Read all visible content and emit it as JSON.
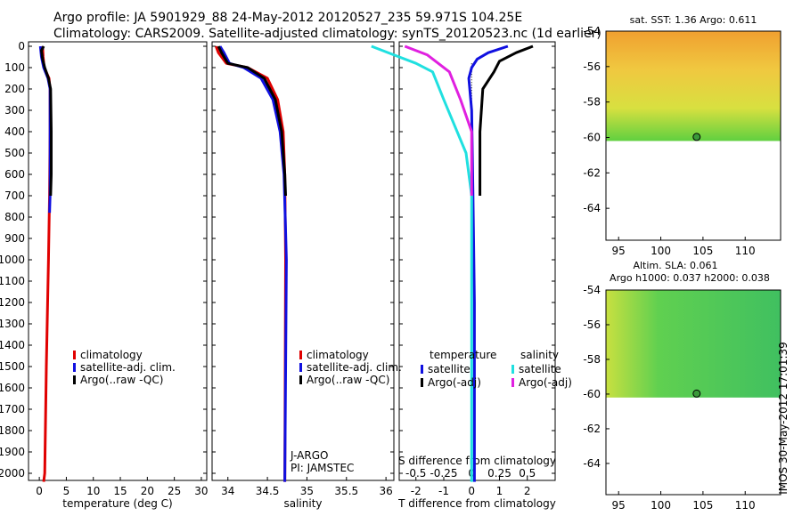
{
  "header": {
    "line1": "Argo profile: JA 5901929_88 24-May-2012 20120527_235 59.971S 104.25E",
    "line2": "Climatology: CARS2009. Satellite-adjusted climatology: synTS_20120523.nc (1d earlier)"
  },
  "colors": {
    "climatology": "#e00000",
    "satellite": "#1010e0",
    "argo": "#000000",
    "cyan": "#20e0e0",
    "magenta": "#e020e0"
  },
  "chart_data": [
    {
      "type": "line",
      "id": "temperature",
      "xlabel": "temperature (deg C)",
      "ylabel": "",
      "xlim": [
        -2,
        31
      ],
      "ylim": [
        2060,
        0
      ],
      "xticks": [
        "0",
        "5",
        "10",
        "15",
        "20",
        "25",
        "30"
      ],
      "xtick_values": [
        0,
        5,
        10,
        15,
        20,
        25,
        30
      ],
      "yticks": [
        0,
        100,
        200,
        300,
        400,
        500,
        600,
        700,
        800,
        900,
        1000,
        1100,
        1200,
        1300,
        1400,
        1500,
        1600,
        1700,
        1800,
        1900,
        2000
      ],
      "ytick_labels": [
        "0",
        "100",
        "200",
        "300",
        "400",
        "500",
        "600",
        "700",
        "800",
        "900",
        "1000",
        "1100",
        "1200",
        "1300",
        "1400",
        "1500",
        "1600",
        "1700",
        "1800",
        "1900",
        "2000"
      ],
      "legend": [
        "climatology",
        "satellite-adj. clim.",
        "Argo(..raw -QC)"
      ],
      "series": [
        {
          "name": "climatology",
          "depth": [
            0,
            50,
            100,
            150,
            200,
            400,
            700,
            1000,
            1500,
            2000,
            2040
          ],
          "values": [
            0.6,
            0.7,
            0.9,
            1.8,
            2.0,
            2.0,
            1.9,
            1.7,
            1.3,
            1.0,
            0.8
          ]
        },
        {
          "name": "satellite-adj. clim.",
          "depth": [
            0,
            50,
            100,
            150,
            200,
            400,
            700,
            780
          ],
          "values": [
            0.2,
            0.4,
            0.8,
            1.6,
            2.0,
            2.0,
            2.0,
            1.9
          ]
        },
        {
          "name": "Argo(..raw -QC)",
          "depth": [
            0,
            20,
            60,
            100,
            150,
            200,
            400,
            600,
            700
          ],
          "values": [
            0.8,
            0.4,
            0.6,
            1.0,
            1.7,
            2.1,
            2.2,
            2.2,
            2.1
          ]
        }
      ]
    },
    {
      "type": "line",
      "id": "salinity",
      "xlabel": "salinity",
      "ylabel": "",
      "xlim": [
        33.8,
        36.1
      ],
      "ylim": [
        2060,
        0
      ],
      "xticks": [
        "34",
        "34.5",
        "35",
        "35.5",
        "36"
      ],
      "xtick_values": [
        34,
        34.5,
        35,
        35.5,
        36
      ],
      "legend": [
        "climatology",
        "satellite-adj. clim.",
        "Argo(..raw -QC)"
      ],
      "annotation": [
        "J-ARGO",
        "PI: JAMSTEC"
      ],
      "series": [
        {
          "name": "climatology",
          "depth": [
            0,
            30,
            80,
            100,
            150,
            250,
            400,
            600,
            1000,
            2040
          ],
          "values": [
            33.85,
            33.88,
            33.98,
            34.25,
            34.5,
            34.63,
            34.7,
            34.72,
            34.73,
            34.72
          ]
        },
        {
          "name": "satellite-adj. clim.",
          "depth": [
            0,
            30,
            80,
            100,
            150,
            250,
            400,
            600,
            1000,
            2040
          ],
          "values": [
            33.9,
            33.95,
            34.02,
            34.2,
            34.42,
            34.57,
            34.66,
            34.71,
            34.74,
            34.72
          ]
        },
        {
          "name": "Argo(..raw -QC)",
          "depth": [
            0,
            30,
            80,
            100,
            150,
            250,
            400,
            600,
            700
          ],
          "values": [
            33.88,
            33.92,
            34.0,
            34.25,
            34.46,
            34.6,
            34.68,
            34.72,
            34.73
          ]
        }
      ]
    },
    {
      "type": "line",
      "id": "differences",
      "xlabel": "T difference from climatology",
      "xlabel_top": "S difference from climatology",
      "xlim": [
        -2.6,
        3.0
      ],
      "ylim": [
        2060,
        0
      ],
      "xticks": [
        "-2",
        "-1",
        "0",
        "1",
        "2"
      ],
      "xtick_values": [
        -2,
        -1,
        0,
        1,
        2
      ],
      "sticks": [
        "-0.5",
        "-0.25",
        "0",
        "0.25",
        "0.5"
      ],
      "stick_values": [
        -0.5,
        -0.25,
        0,
        0.25,
        0.5
      ],
      "legend_headers": [
        "temperature",
        "salinity"
      ],
      "legend": [
        "satellite",
        "Argo(-adj)",
        "satellite",
        "Argo(-adj)"
      ],
      "series": [
        {
          "name": "T satellite",
          "depth": [
            0,
            30,
            60,
            100,
            150,
            300,
            700,
            1200,
            2040
          ],
          "values": [
            1.3,
            0.6,
            0.2,
            0.0,
            -0.1,
            0.0,
            0.05,
            0.1,
            0.1
          ]
        },
        {
          "name": "T Argo(-adj)",
          "depth": [
            0,
            30,
            70,
            120,
            200,
            400,
            700
          ],
          "values": [
            2.2,
            1.6,
            1.0,
            0.8,
            0.4,
            0.3,
            0.3
          ]
        },
        {
          "name": "S satellite",
          "depth": [
            0,
            40,
            80,
            120,
            250,
            500,
            700,
            1200,
            2040
          ],
          "values": [
            -0.9,
            -0.7,
            -0.5,
            -0.35,
            -0.25,
            -0.05,
            0.0,
            0.0,
            0.0
          ]
        },
        {
          "name": "S Argo(-adj)",
          "depth": [
            0,
            40,
            80,
            120,
            250,
            400,
            700
          ],
          "values": [
            -0.6,
            -0.4,
            -0.3,
            -0.2,
            -0.1,
            0.0,
            0.0
          ]
        }
      ]
    },
    {
      "type": "heatmap",
      "id": "sst-map",
      "title": "sat. SST: 1.36  Argo: 0.611",
      "xlim": [
        93.5,
        114.2
      ],
      "ylim": [
        -65.8,
        -54
      ],
      "xticks": [
        "95",
        "100",
        "105",
        "110"
      ],
      "xtick_values": [
        95,
        100,
        105,
        110
      ],
      "yticks": [
        "-54",
        "-56",
        "-58",
        "-60",
        "-62",
        "-64"
      ],
      "ytick_values": [
        -54,
        -56,
        -58,
        -60,
        -62,
        -64
      ],
      "data_lat_min": -60.2,
      "float_position": {
        "lon": 104.25,
        "lat": -59.971
      }
    },
    {
      "type": "heatmap",
      "id": "sla-map",
      "title": "Altim. SLA: 0.061",
      "subtitle": "Argo h1000: 0.037  h2000: 0.038",
      "xlim": [
        93.5,
        114.2
      ],
      "ylim": [
        -65.8,
        -54
      ],
      "xticks": [
        "95",
        "100",
        "105",
        "110"
      ],
      "xtick_values": [
        95,
        100,
        105,
        110
      ],
      "yticks": [
        "-54",
        "-56",
        "-58",
        "-60",
        "-62",
        "-64"
      ],
      "ytick_values": [
        -54,
        -56,
        -58,
        -60,
        -62,
        -64
      ],
      "data_lat_min": -60.2,
      "float_position": {
        "lon": 104.25,
        "lat": -59.971
      }
    }
  ],
  "stamp": "IMOS 30-May-2012 17:01:39"
}
